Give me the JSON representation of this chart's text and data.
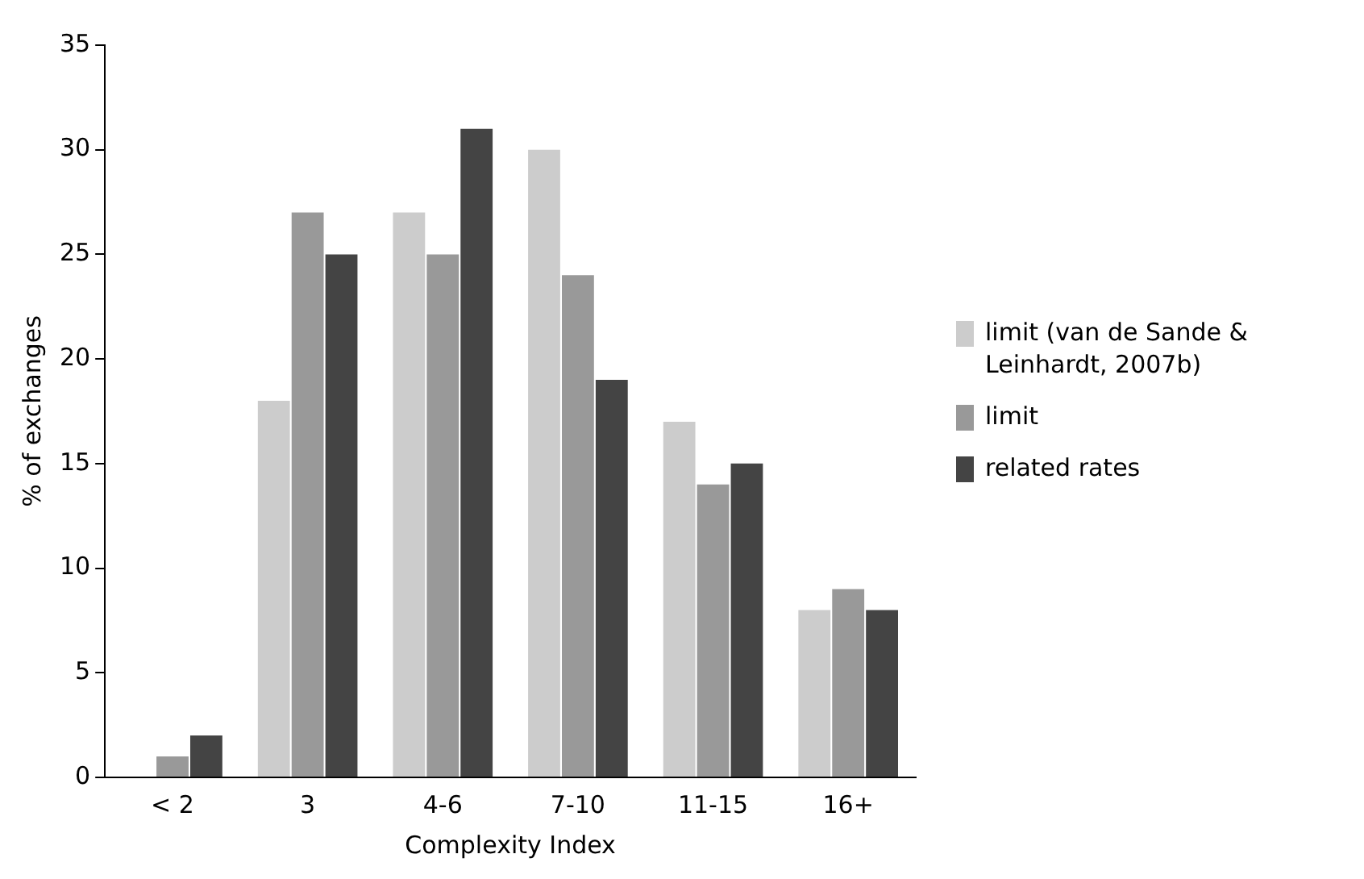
{
  "chart_data": {
    "type": "bar",
    "xlabel": "Complexity Index",
    "ylabel": "% of exchanges",
    "categories": [
      "< 2",
      "3",
      "4-6",
      "7-10",
      "11-15",
      "16+"
    ],
    "series": [
      {
        "name": "limit (van de Sande & Leinhardt, 2007b)",
        "color": "#cccccc",
        "values": [
          0,
          18,
          27,
          30,
          17,
          8
        ]
      },
      {
        "name": "limit",
        "color": "#999999",
        "values": [
          1,
          27,
          25,
          24,
          14,
          9
        ]
      },
      {
        "name": "related rates",
        "color": "#444444",
        "values": [
          2,
          25,
          31,
          19,
          15,
          8
        ]
      }
    ],
    "ylim": [
      0,
      35
    ],
    "yticks": [
      0,
      5,
      10,
      15,
      20,
      25,
      30,
      35
    ],
    "grid": false,
    "legend": "right"
  }
}
